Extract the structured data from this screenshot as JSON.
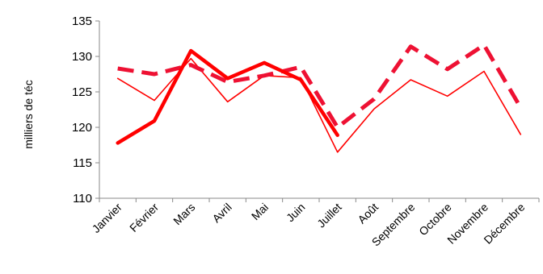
{
  "chart_data": {
    "type": "line",
    "title": "",
    "xlabel": "",
    "ylabel": "milliers de téc",
    "ylim": [
      110,
      135
    ],
    "yticks": [
      110,
      115,
      120,
      125,
      130,
      135
    ],
    "grid": false,
    "legend": "none",
    "categories": [
      "Janvier",
      "Février",
      "Mars",
      "Avril",
      "Mai",
      "Juin",
      "Juillet",
      "Août",
      "Septembre",
      "Octobre",
      "Novembre",
      "Décembre"
    ],
    "series": [
      {
        "style": "thin-solid",
        "color": "#ff0000",
        "values": [
          126.9,
          123.8,
          129.7,
          123.6,
          127.3,
          127.0,
          116.5,
          122.6,
          126.7,
          124.4,
          127.9,
          119.0
        ]
      },
      {
        "style": "dashed",
        "color": "#ee1133",
        "values": [
          128.3,
          127.5,
          128.8,
          126.4,
          127.3,
          128.5,
          120.0,
          124.0,
          131.4,
          128.2,
          131.6,
          122.8
        ]
      },
      {
        "style": "thick-solid",
        "color": "#ff0000",
        "values": [
          117.8,
          120.9,
          130.8,
          126.9,
          129.1,
          126.7,
          118.9,
          null,
          null,
          null,
          null,
          null
        ]
      }
    ]
  }
}
